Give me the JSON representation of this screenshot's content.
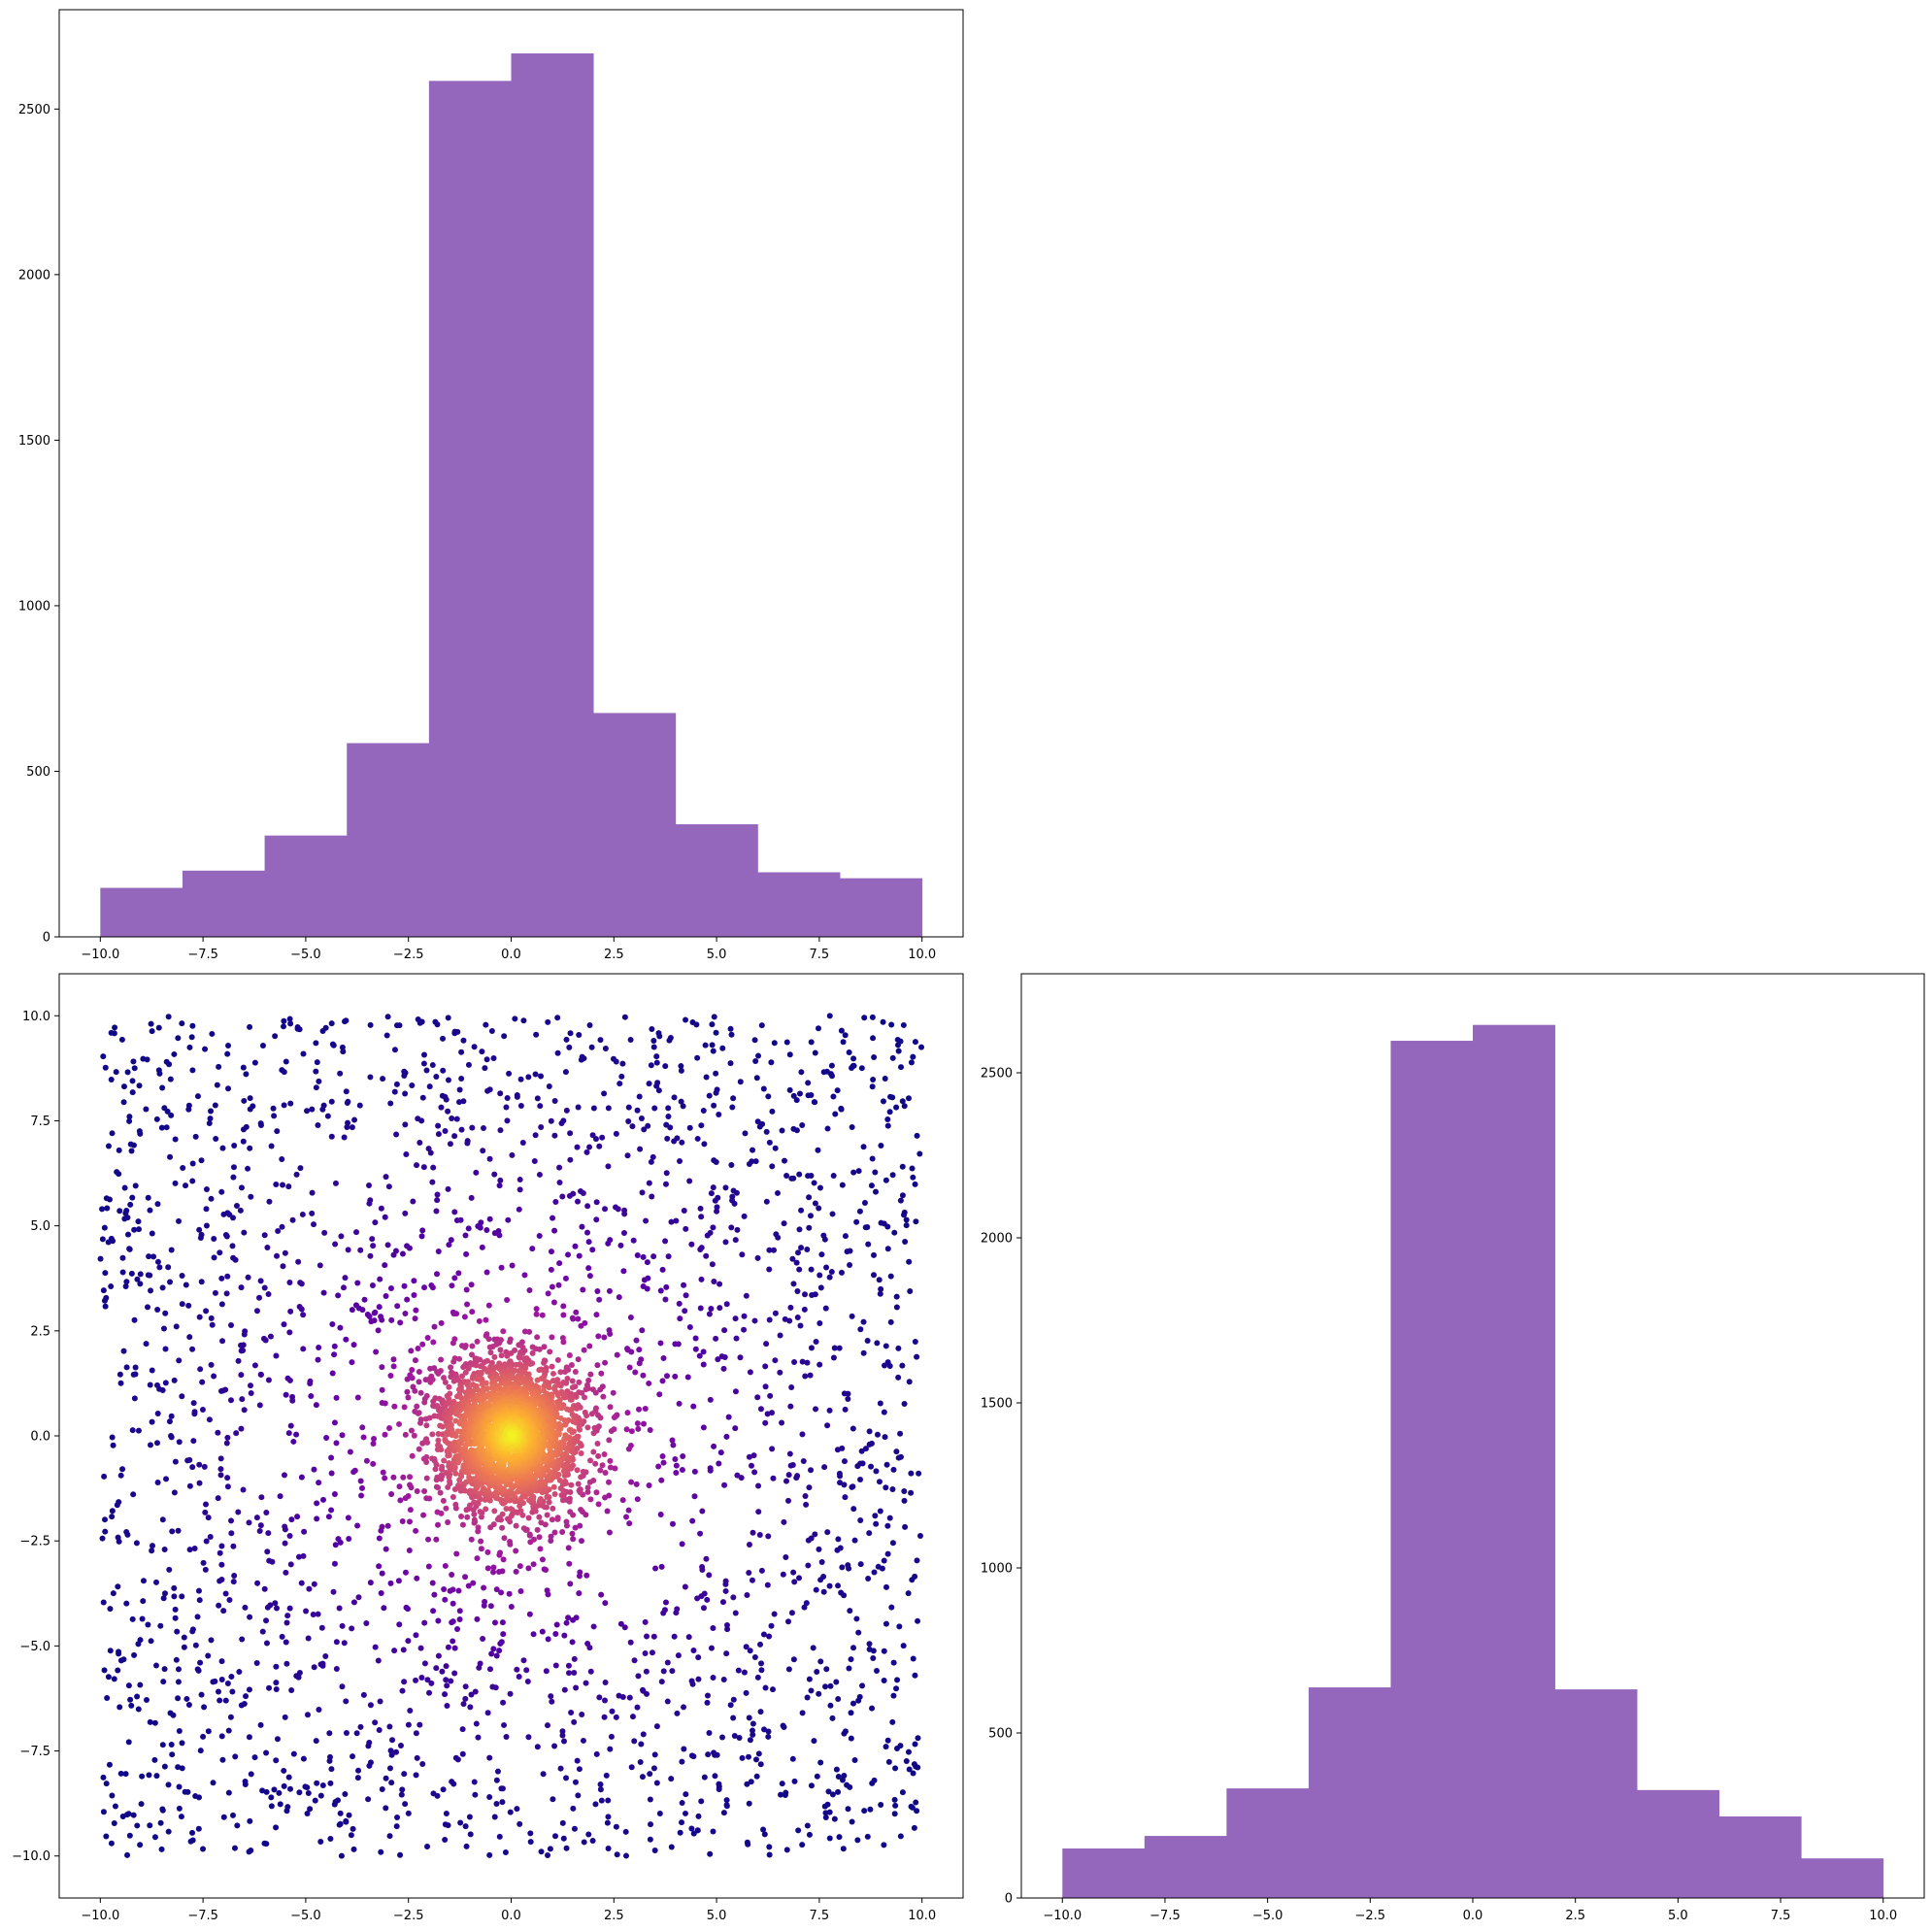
{
  "chart_data": [
    {
      "type": "bar",
      "subtype": "histogram",
      "title": "",
      "xlabel": "",
      "ylabel": "",
      "bin_edges": [
        -10,
        -8,
        -6,
        -4,
        -2,
        0,
        2,
        4,
        6,
        8,
        10
      ],
      "values": [
        148,
        200,
        306,
        585,
        2585,
        2668,
        676,
        340,
        195,
        177
      ],
      "xlim": [
        -11,
        11
      ],
      "ylim": [
        0,
        2800
      ],
      "xticks": [
        -10.0,
        -7.5,
        -5.0,
        -2.5,
        0.0,
        2.5,
        5.0,
        7.5,
        10.0
      ],
      "xtick_labels": [
        "−10.0",
        "−7.5",
        "−5.0",
        "−2.5",
        "0.0",
        "2.5",
        "5.0",
        "7.5",
        "10.0"
      ],
      "yticks": [
        0,
        500,
        1000,
        1500,
        2000,
        2500
      ],
      "ytick_labels": [
        "0",
        "500",
        "1000",
        "1500",
        "2000",
        "2500"
      ],
      "color": "#9467bd",
      "grid": false,
      "legend": "none"
    },
    {
      "type": "scatter",
      "title": "",
      "xlabel": "",
      "ylabel": "",
      "description": "density-coloured scatter of about 5000 points; points spread uniformly over [-10,10] x [-10,10] plus a dense cluster at the origin; colour goes from dark purple (low density) to yellow (high density)",
      "point_count": 5000,
      "xlim": [
        -11,
        11
      ],
      "ylim": [
        -11,
        11
      ],
      "xticks": [
        -10.0,
        -7.5,
        -5.0,
        -2.5,
        0.0,
        2.5,
        5.0,
        7.5,
        10.0
      ],
      "xtick_labels": [
        "−10.0",
        "−7.5",
        "−5.0",
        "−2.5",
        "0.0",
        "2.5",
        "5.0",
        "7.5",
        "10.0"
      ],
      "yticks": [
        -10.0,
        -7.5,
        -5.0,
        -2.5,
        0.0,
        2.5,
        5.0,
        7.5,
        10.0
      ],
      "ytick_labels": [
        "−10.0",
        "−7.5",
        "−5.0",
        "−2.5",
        "0.0",
        "2.5",
        "5.0",
        "7.5",
        "10.0"
      ],
      "colormap": "plasma",
      "colormap_stops": [
        "#0d0887",
        "#5c01a6",
        "#9c179e",
        "#cc4778",
        "#ed7953",
        "#fdb42f",
        "#f0f921"
      ],
      "grid": false,
      "legend": "none"
    },
    {
      "type": "bar",
      "subtype": "histogram",
      "title": "",
      "xlabel": "",
      "ylabel": "",
      "bin_edges": [
        -10,
        -8,
        -6,
        -4,
        -2,
        0,
        2,
        4,
        6,
        8,
        10
      ],
      "values": [
        150,
        188,
        332,
        638,
        2597,
        2645,
        632,
        327,
        247,
        120
      ],
      "xlim": [
        -11,
        11
      ],
      "ylim": [
        0,
        2800
      ],
      "xticks": [
        -10.0,
        -7.5,
        -5.0,
        -2.5,
        0.0,
        2.5,
        5.0,
        7.5,
        10.0
      ],
      "xtick_labels": [
        "−10.0",
        "−7.5",
        "−5.0",
        "−2.5",
        "0.0",
        "2.5",
        "5.0",
        "7.5",
        "10.0"
      ],
      "yticks": [
        0,
        500,
        1000,
        1500,
        2000,
        2500
      ],
      "ytick_labels": [
        "0",
        "500",
        "1000",
        "1500",
        "2000",
        "2500"
      ],
      "color": "#9467bd",
      "grid": false,
      "legend": "none"
    }
  ]
}
